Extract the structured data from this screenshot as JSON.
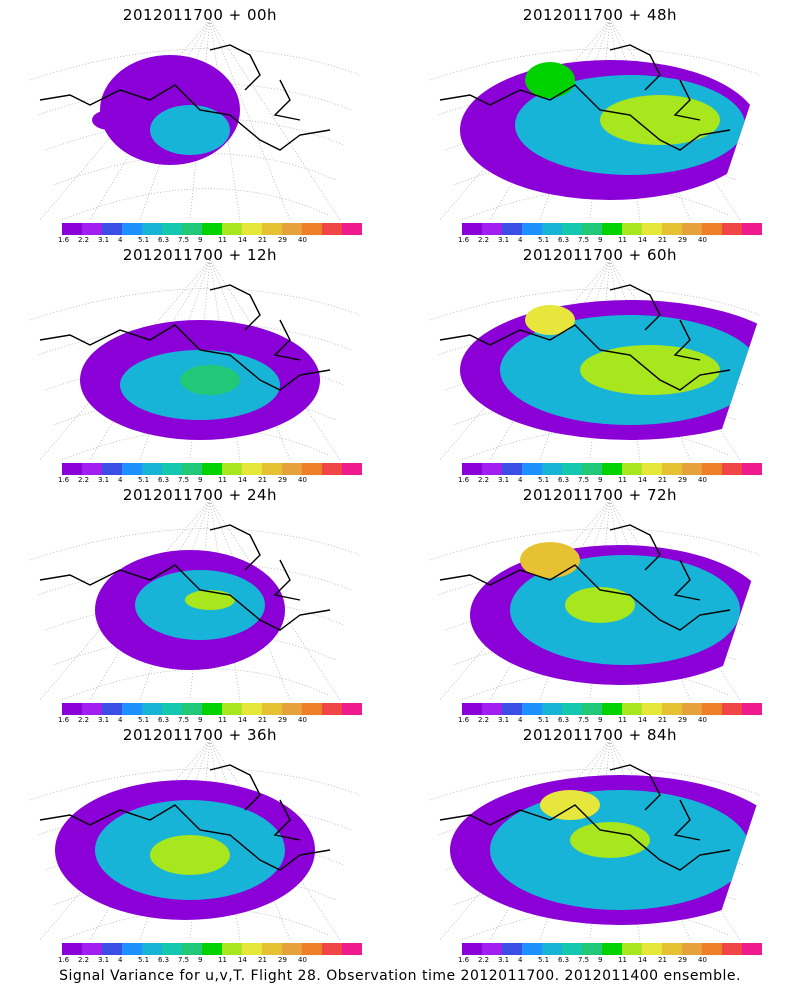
{
  "panels": [
    {
      "title": "2012011700 + 00h",
      "lead": "00h"
    },
    {
      "title": "2012011700 + 48h",
      "lead": "48h"
    },
    {
      "title": "2012011700 + 12h",
      "lead": "12h"
    },
    {
      "title": "2012011700 + 60h",
      "lead": "60h"
    },
    {
      "title": "2012011700 + 24h",
      "lead": "24h"
    },
    {
      "title": "2012011700 + 72h",
      "lead": "72h"
    },
    {
      "title": "2012011700 + 36h",
      "lead": "36h"
    },
    {
      "title": "2012011700 + 84h",
      "lead": "84h"
    }
  ],
  "colorbar": {
    "labels": [
      "1.6",
      "2.2",
      "3.1",
      "4",
      "5.1",
      "6.3",
      "7.5",
      "9",
      "11",
      "14",
      "21",
      "29",
      "40"
    ],
    "colors": [
      "#8a00d6",
      "#a020f0",
      "#3b4ee6",
      "#1e90ff",
      "#18b4d8",
      "#14c8b0",
      "#20c878",
      "#00d200",
      "#a8e61e",
      "#e6e63c",
      "#e6c232",
      "#e6a03c",
      "#f07d28",
      "#f04646",
      "#f01a8c"
    ]
  },
  "caption": "Signal Variance for u,v,T. Flight 28. Observation time 2012011700. 2012011400 ensemble."
}
